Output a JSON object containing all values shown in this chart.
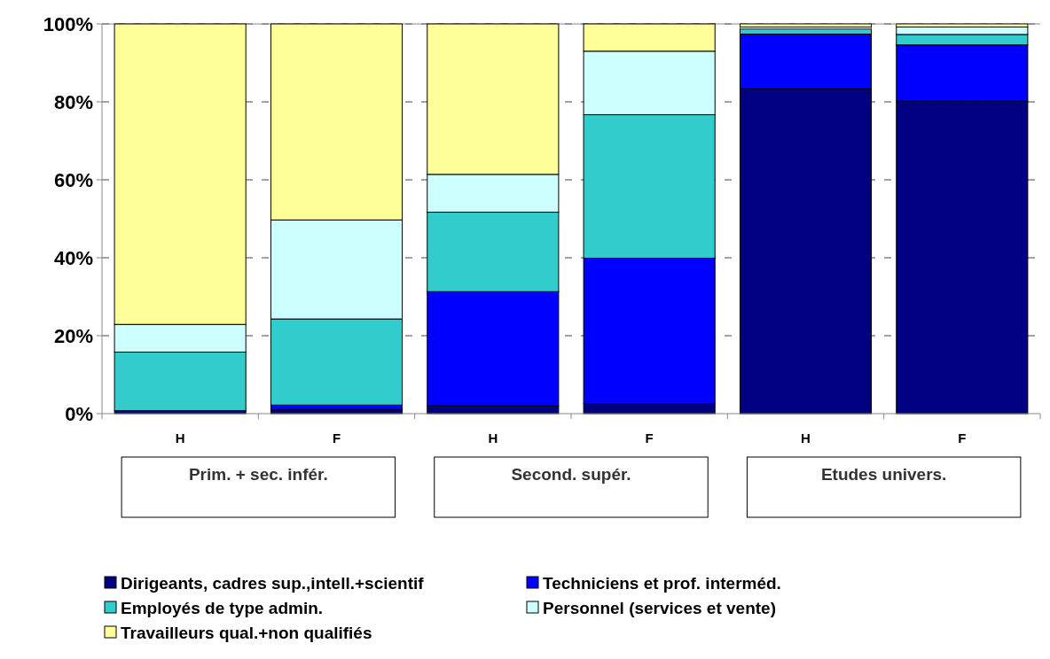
{
  "chart_data": {
    "type": "bar",
    "stacked": true,
    "categories": [
      "H",
      "F",
      "H",
      "F",
      "H",
      "F"
    ],
    "series": [
      {
        "name": "Dirigeants, cadres sup.,intell.+scientif",
        "color": "#000080",
        "values": [
          0.8,
          1.0,
          2.0,
          2.6,
          83.4,
          80.2
        ]
      },
      {
        "name": "Techniciens et prof. interméd.",
        "color": "#0000ff",
        "values": [
          null,
          1.2,
          29.3,
          37.3,
          14.0,
          14.4
        ]
      },
      {
        "name": "Employés de type admin.",
        "color": "#33cccc",
        "values": [
          15.0,
          22.1,
          20.4,
          36.8,
          1.3,
          2.7
        ]
      },
      {
        "name": "Personnel (services et vente)",
        "color": "#ccffff",
        "values": [
          7.1,
          25.4,
          9.7,
          16.3,
          0.5,
          1.9
        ]
      },
      {
        "name": "Travailleurs  qual.+non qualifiés",
        "color": "#ffff99",
        "values": [
          77.1,
          50.3,
          38.6,
          7.0,
          0.8,
          0.8
        ]
      }
    ],
    "ylim": [
      0,
      100
    ],
    "yticks": [
      {
        "value": 0,
        "label": "0%"
      },
      {
        "value": 20,
        "label": "20%"
      },
      {
        "value": 40,
        "label": "40%"
      },
      {
        "value": 60,
        "label": "60%"
      },
      {
        "value": 80,
        "label": "80%"
      },
      {
        "value": 100,
        "label": "100%"
      }
    ],
    "grid": "y",
    "legend": "bottom",
    "annotations": [
      "Prim.  + sec. infér.",
      "Second. supér.",
      "Etudes univers."
    ]
  }
}
